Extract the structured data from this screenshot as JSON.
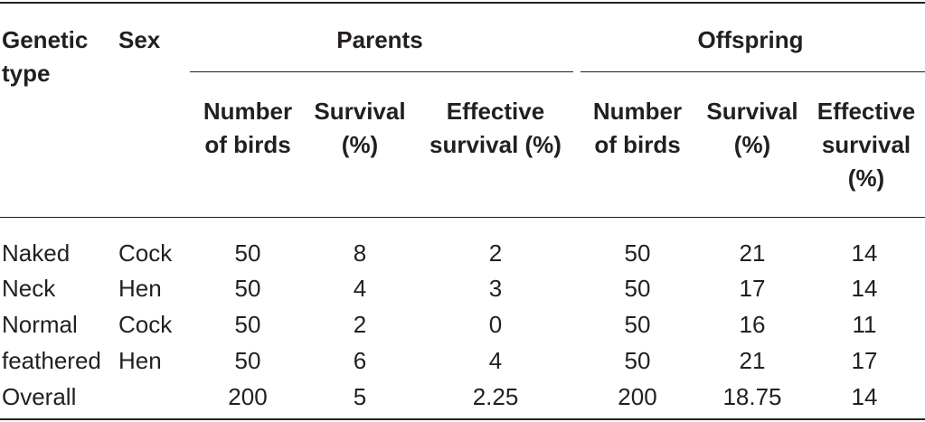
{
  "header": {
    "genetic_type_line1": "Genetic",
    "genetic_type_line2": "type",
    "sex": "Sex",
    "parents": "Parents",
    "offspring": "Offspring",
    "sub": {
      "number_line1": "Number",
      "number_line2": "of birds",
      "survival_line1": "Survival",
      "survival_line2": "(%)",
      "eff_parents_line1": "Effective",
      "eff_parents_line2": "survival (%)",
      "eff_off_line1": "Effective",
      "eff_off_line2": "survival",
      "eff_off_line3": "(%)"
    }
  },
  "rows": [
    {
      "type": "Naked",
      "sex": "Cock",
      "p_num": "50",
      "p_surv": "8",
      "p_eff": "2",
      "o_num": "50",
      "o_surv": "21",
      "o_eff": "14"
    },
    {
      "type": "Neck",
      "sex": "Hen",
      "p_num": "50",
      "p_surv": "4",
      "p_eff": "3",
      "o_num": "50",
      "o_surv": "17",
      "o_eff": "14"
    },
    {
      "type": "Normal",
      "sex": "Cock",
      "p_num": "50",
      "p_surv": "2",
      "p_eff": "0",
      "o_num": "50",
      "o_surv": "16",
      "o_eff": "11"
    },
    {
      "type": "feathered",
      "sex": "Hen",
      "p_num": "50",
      "p_surv": "6",
      "p_eff": "4",
      "o_num": "50",
      "o_surv": "21",
      "o_eff": "17"
    },
    {
      "type": "Overall",
      "sex": "",
      "p_num": "200",
      "p_surv": "5",
      "p_eff": "2.25",
      "o_num": "200",
      "o_surv": "18.75",
      "o_eff": "14"
    }
  ]
}
